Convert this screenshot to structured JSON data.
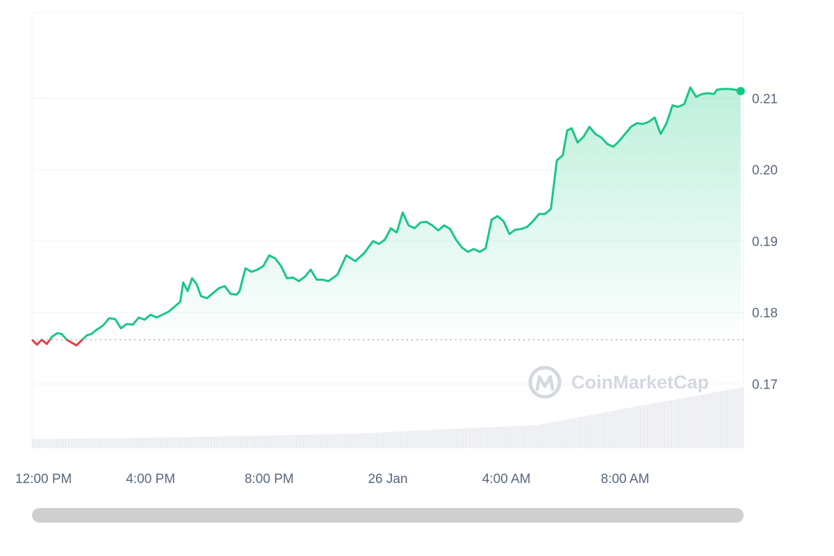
{
  "chart_data": {
    "type": "line",
    "title": "",
    "xlabel": "",
    "ylabel": "",
    "x_tick_labels": [
      "12:00 PM",
      "4:00 PM",
      "8:00 PM",
      "26 Jan",
      "4:00 AM",
      "8:00 AM"
    ],
    "x_tick_hours": [
      0,
      4,
      8,
      12,
      16,
      20
    ],
    "x_range_hours": [
      0,
      24
    ],
    "y_tick_labels": [
      "0.21",
      "0.20",
      "0.19",
      "0.18",
      "0.17"
    ],
    "y_tick_values": [
      0.21,
      0.2,
      0.19,
      0.18,
      0.17
    ],
    "ylim": [
      0.161,
      0.222
    ],
    "grid": true,
    "baseline": 0.1762,
    "colors": {
      "up": "#16c784",
      "down": "#ea3943",
      "grid": "#eff2f5",
      "baseline": "#a6b0c3",
      "volume": "#eceef2",
      "scrollbar": "#cfcfcf"
    },
    "price_series": {
      "name": "",
      "hours": [
        0.0,
        0.17,
        0.33,
        0.5,
        0.67,
        0.85,
        1.0,
        1.17,
        1.33,
        1.5,
        1.67,
        1.85,
        2.0,
        2.15,
        2.4,
        2.6,
        2.8,
        3.0,
        3.2,
        3.4,
        3.6,
        3.8,
        4.0,
        4.2,
        4.4,
        4.6,
        4.8,
        5.0,
        5.1,
        5.25,
        5.4,
        5.55,
        5.7,
        5.9,
        6.1,
        6.3,
        6.5,
        6.7,
        6.9,
        7.0,
        7.2,
        7.4,
        7.6,
        7.8,
        8.0,
        8.2,
        8.4,
        8.6,
        8.8,
        9.0,
        9.2,
        9.4,
        9.6,
        9.8,
        10.0,
        10.3,
        10.6,
        10.9,
        11.2,
        11.5,
        11.7,
        11.9,
        12.1,
        12.3,
        12.5,
        12.7,
        12.9,
        13.1,
        13.3,
        13.5,
        13.7,
        13.9,
        14.1,
        14.3,
        14.5,
        14.7,
        14.9,
        15.1,
        15.3,
        15.5,
        15.7,
        15.9,
        16.1,
        16.3,
        16.5,
        16.7,
        16.9,
        17.1,
        17.3,
        17.5,
        17.7,
        17.9,
        18.05,
        18.2,
        18.4,
        18.6,
        18.8,
        19.0,
        19.2,
        19.4,
        19.6,
        19.8,
        20.0,
        20.2,
        20.4,
        20.6,
        20.8,
        21.0,
        21.2,
        21.4,
        21.6,
        21.8,
        22.0,
        22.2,
        22.4,
        22.6,
        22.8,
        23.0,
        23.1,
        23.3,
        23.5,
        23.7,
        23.9
      ],
      "values": [
        0.1762,
        0.1755,
        0.1762,
        0.1756,
        0.1766,
        0.1771,
        0.177,
        0.1762,
        0.1758,
        0.1754,
        0.1761,
        0.1768,
        0.177,
        0.1775,
        0.1782,
        0.1792,
        0.1791,
        0.1778,
        0.1784,
        0.1783,
        0.1793,
        0.179,
        0.1797,
        0.1793,
        0.1797,
        0.1801,
        0.1808,
        0.1815,
        0.1842,
        0.183,
        0.1848,
        0.184,
        0.1823,
        0.182,
        0.1827,
        0.1834,
        0.1837,
        0.1826,
        0.1825,
        0.183,
        0.1862,
        0.1857,
        0.186,
        0.1865,
        0.188,
        0.1876,
        0.1865,
        0.1848,
        0.1849,
        0.1844,
        0.185,
        0.186,
        0.1846,
        0.1846,
        0.1844,
        0.1853,
        0.188,
        0.1872,
        0.1883,
        0.19,
        0.1896,
        0.1902,
        0.1918,
        0.1912,
        0.194,
        0.1922,
        0.1918,
        0.1926,
        0.1927,
        0.1922,
        0.1915,
        0.1922,
        0.1917,
        0.1902,
        0.1891,
        0.1885,
        0.1889,
        0.1885,
        0.189,
        0.193,
        0.1935,
        0.1928,
        0.191,
        0.1916,
        0.1917,
        0.192,
        0.1928,
        0.1938,
        0.1938,
        0.1945,
        0.2013,
        0.202,
        0.2055,
        0.2058,
        0.2038,
        0.2046,
        0.206,
        0.205,
        0.2045,
        0.2036,
        0.2032,
        0.204,
        0.205,
        0.206,
        0.2065,
        0.2064,
        0.2067,
        0.2073,
        0.205,
        0.2065,
        0.209,
        0.2088,
        0.2092,
        0.2115,
        0.2102,
        0.2106,
        0.2107,
        0.2106,
        0.2112,
        0.2113,
        0.2113,
        0.2112,
        0.211
      ]
    },
    "volume_series": {
      "name": "",
      "hours": [
        0,
        5,
        11,
        13,
        17,
        18.6,
        20,
        24
      ],
      "relative": [
        0.15,
        0.18,
        0.24,
        0.29,
        0.38,
        0.52,
        0.65,
        1.0
      ]
    },
    "watermark": "CoinMarketCap"
  }
}
